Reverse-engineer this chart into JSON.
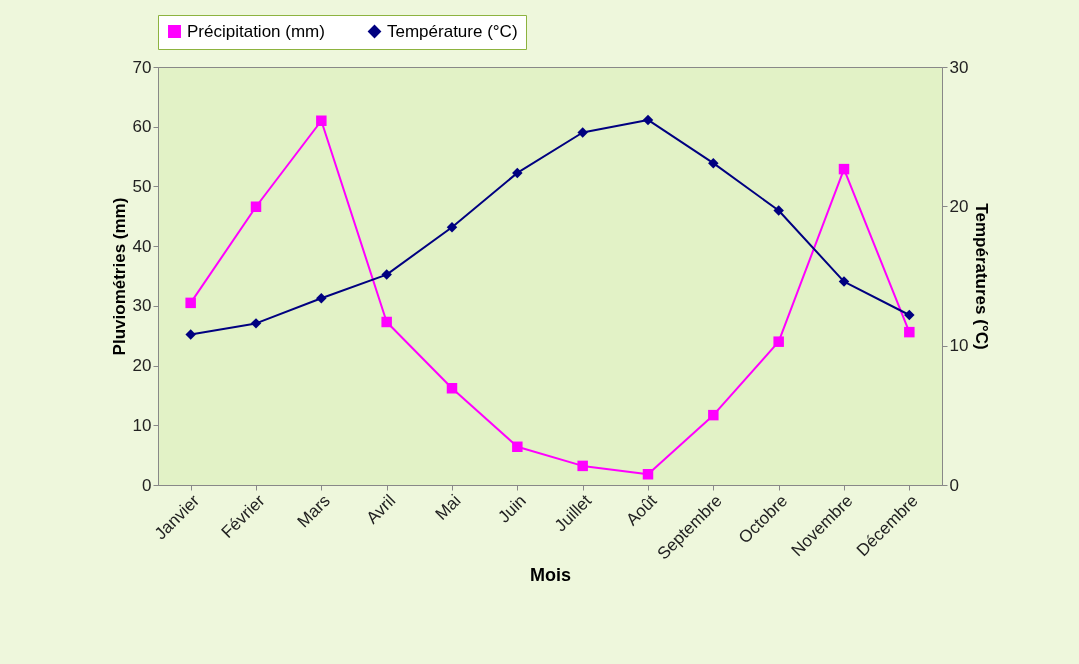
{
  "chart_data": {
    "type": "line",
    "xlabel": "Mois",
    "ylabel": "Pluviométries (mm)",
    "y2label": "Températures (°C)",
    "categories": [
      "Janvier",
      "Février",
      "Mars",
      "Avril",
      "Mai",
      "Juin",
      "Juillet",
      "Août",
      "Septembre",
      "Octobre",
      "Novembre",
      "Décembre"
    ],
    "series": [
      {
        "name": "Précipitation (mm)",
        "color": "#ff00ff",
        "marker": "square",
        "values": [
          30.5,
          46.6,
          61,
          27.3,
          16.2,
          6.4,
          3.2,
          1.8,
          11.7,
          24,
          52.9,
          25.6
        ]
      },
      {
        "name": "Température (°C)",
        "color": "#000080",
        "marker": "diamond",
        "axis": "y2",
        "values": [
          10.8,
          11.6,
          13.4,
          15.1,
          18.5,
          22.4,
          25.3,
          26.2,
          23.1,
          19.7,
          14.6,
          12.2
        ]
      }
    ],
    "ylim": [
      0,
      70
    ],
    "yticks": [
      0,
      10,
      20,
      30,
      40,
      50,
      60,
      70
    ],
    "y2lim": [
      0,
      30
    ],
    "y2ticks": [
      0,
      10,
      20,
      30
    ],
    "legend": "top",
    "grid": false
  }
}
